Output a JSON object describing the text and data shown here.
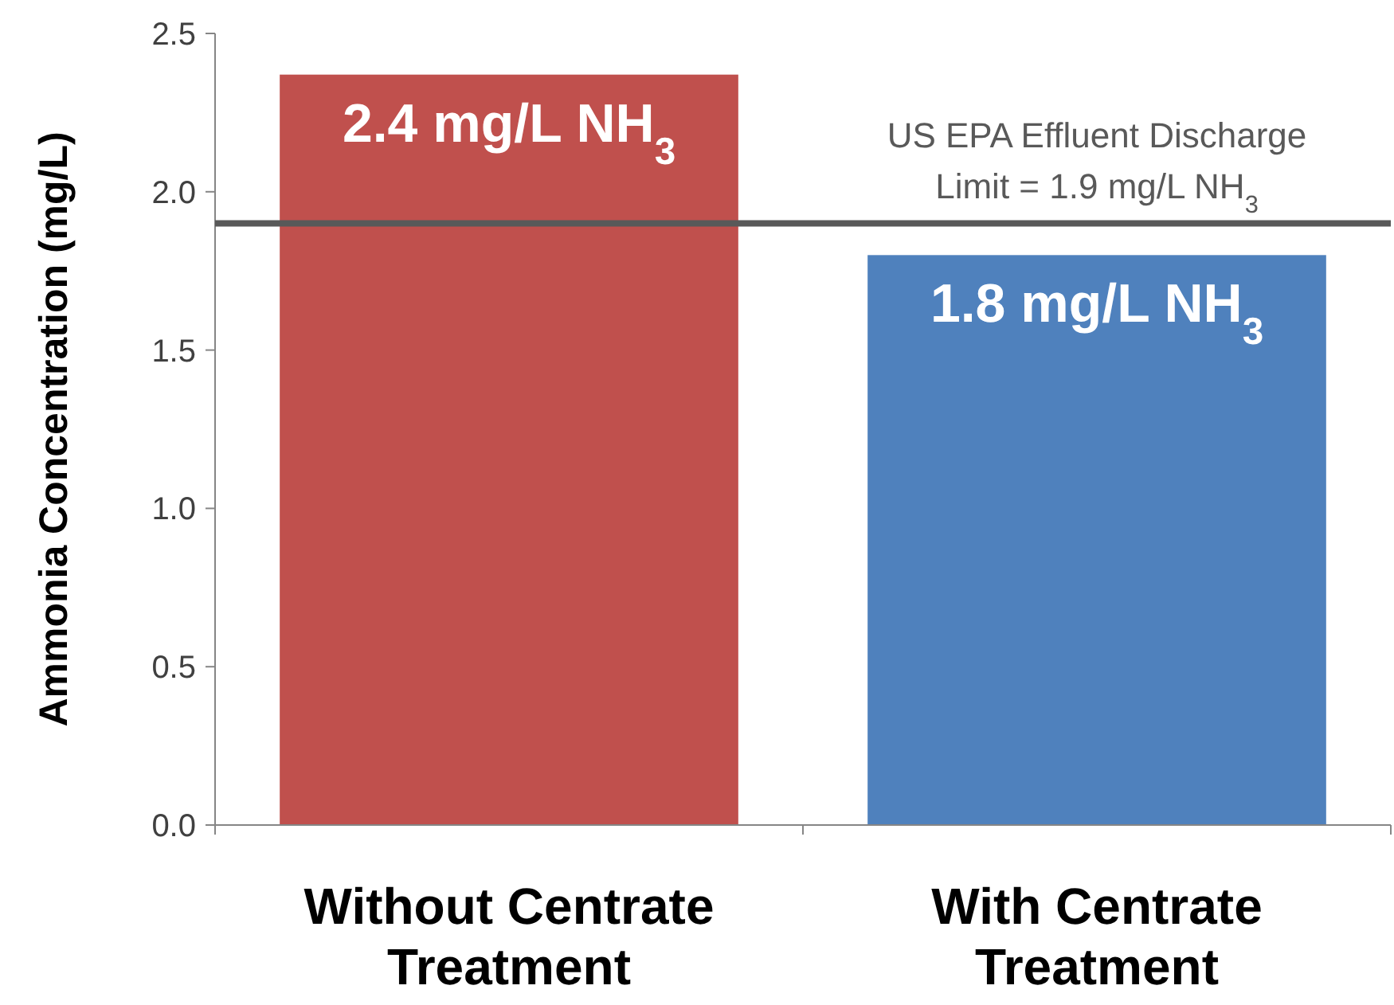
{
  "chart_data": {
    "type": "bar",
    "ylabel": "Ammonia Concentration (mg/L)",
    "categories": [
      "Without Centrate Treatment",
      "With Centrate Treatment"
    ],
    "values": [
      2.37,
      1.8
    ],
    "colors": [
      "#c0504d",
      "#4f81bd"
    ],
    "value_labels": [
      "2.4 mg/L NH$_{3}$",
      "1.8 mg/L NH$_{3}$"
    ],
    "ylim": [
      0,
      2.5
    ],
    "yticks": [
      {
        "value": 0,
        "label": "0.0"
      },
      {
        "value": 0.5,
        "label": "0.5"
      },
      {
        "value": 1,
        "label": "1.0"
      },
      {
        "value": 1.5,
        "label": "1.5"
      },
      {
        "value": 2,
        "label": "2.0"
      },
      {
        "value": 2.5,
        "label": "2.5"
      }
    ],
    "ref_lines": [
      {
        "axis": "y",
        "value": 1.9,
        "label": "US EPA Effluent Discharge Limit = 1.9 mg/L NH$_{3}$",
        "color": "#595959"
      }
    ],
    "grid": false
  }
}
